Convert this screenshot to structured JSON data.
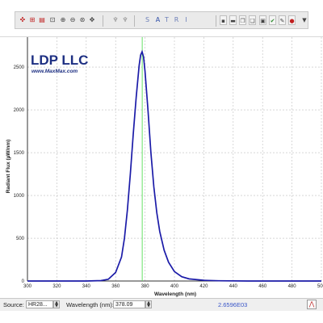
{
  "toolbar": {
    "tool_icons": [
      "crosshair-icon",
      "grid-icon",
      "save-icon",
      "zoom-icon",
      "zoom-in-icon",
      "zoom-out-icon",
      "zoom-reset-icon",
      "pan-icon",
      "pin-icon",
      "pin-alt-icon",
      "floppy-icon",
      "print-icon",
      "copy-icon",
      "paste-icon",
      "export-icon",
      "settings-icon",
      "stop-icon",
      "dropdown-icon"
    ],
    "mode_labels": [
      "S",
      "A",
      "T",
      "R",
      "I"
    ]
  },
  "logo": {
    "company": "LDP LLC",
    "url": "www.MaxMax.com"
  },
  "colors": {
    "curve": "#1b1ba8",
    "cursor": "#55dd55",
    "grid": "#bfbfbf",
    "logo_text": "#1d2f82"
  },
  "chart_data": {
    "type": "line",
    "title": "",
    "xlabel": "Wavelength (nm)",
    "ylabel": "Radiant Flux (µW/nm)",
    "xlim": [
      300,
      500
    ],
    "ylim": [
      0,
      2850
    ],
    "x_ticks": [
      300,
      320,
      340,
      360,
      380,
      400,
      420,
      440,
      460,
      480,
      500
    ],
    "y_ticks": [
      0,
      500,
      1000,
      1500,
      2000,
      2500
    ],
    "grid": true,
    "cursor_x": 378.09,
    "series": [
      {
        "name": "",
        "x": [
          300,
          340,
          350,
          355,
          360,
          364,
          366,
          368,
          370,
          372,
          374,
          376,
          377,
          378,
          379,
          380,
          382,
          384,
          386,
          388,
          390,
          393,
          396,
          400,
          405,
          410,
          420,
          430,
          450,
          480,
          500
        ],
        "y": [
          0,
          0,
          5,
          20,
          100,
          280,
          500,
          830,
          1250,
          1720,
          2150,
          2520,
          2640,
          2680,
          2620,
          2450,
          2000,
          1500,
          1100,
          800,
          580,
          360,
          220,
          110,
          50,
          25,
          8,
          3,
          0,
          0,
          0
        ]
      }
    ]
  },
  "status": {
    "source_label": "Source:",
    "source_value": "HR28...",
    "wavelength_label": "Wavelength (nm):",
    "wavelength_value": "378.09",
    "reading_value": "2.6596E03"
  }
}
